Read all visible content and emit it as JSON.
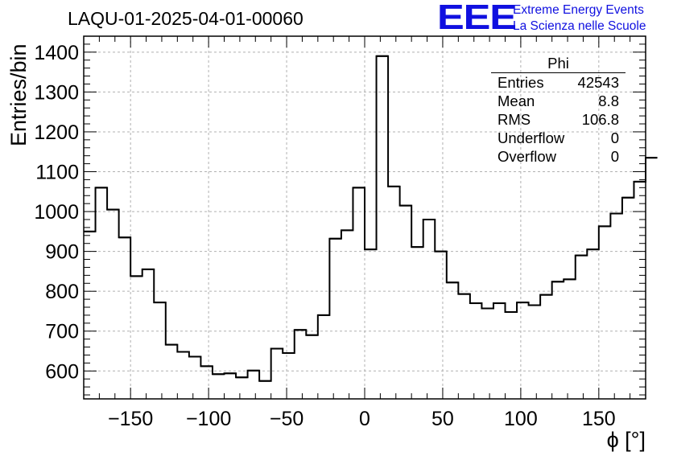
{
  "title": "LAQU-01-2025-04-01-00060",
  "logo": {
    "mark": "EEE",
    "line1": "Extreme Energy Events",
    "line2": "La Scienza nelle Scuole",
    "color": "#1010e0"
  },
  "stats": {
    "name": "Phi",
    "rows": [
      {
        "label": "Entries",
        "value": "42543"
      },
      {
        "label": "Mean",
        "value": "8.8"
      },
      {
        "label": "RMS",
        "value": "106.8"
      },
      {
        "label": "Underflow",
        "value": "0"
      },
      {
        "label": "Overflow",
        "value": "0"
      }
    ]
  },
  "chart_data": {
    "type": "histogram",
    "title": "LAQU-01-2025-04-01-00060",
    "xlabel": "ϕ [°]",
    "ylabel": "Entries/bin",
    "xlim": [
      -180,
      180
    ],
    "ylim": [
      530,
      1440
    ],
    "x_ticks": [
      -150,
      -100,
      -50,
      0,
      50,
      100,
      150
    ],
    "y_ticks": [
      600,
      700,
      800,
      900,
      1000,
      1100,
      1200,
      1300,
      1400
    ],
    "grid": true,
    "bin_edges_start": -180,
    "bin_width": 7.5,
    "values": [
      950,
      1060,
      1005,
      935,
      838,
      855,
      772,
      666,
      648,
      636,
      612,
      592,
      594,
      584,
      601,
      575,
      656,
      645,
      703,
      690,
      740,
      932,
      953,
      1060,
      905,
      1390,
      1063,
      1015,
      911,
      980,
      900,
      822,
      793,
      770,
      757,
      770,
      748,
      772,
      765,
      791,
      824,
      830,
      890,
      905,
      963,
      995,
      1035,
      1075,
      1135
    ]
  }
}
